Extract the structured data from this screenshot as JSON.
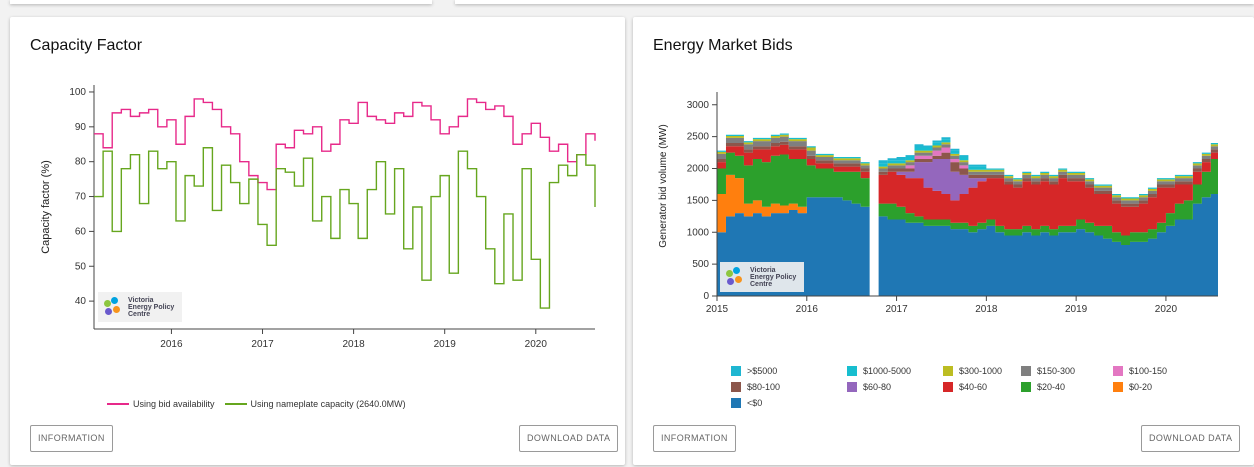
{
  "left_panel": {
    "title": "Capacity Factor",
    "info_button": "INFORMATION",
    "download_button": "DOWNLOAD DATA",
    "logo_text": "Victoria Energy Policy Centre",
    "chart_data": {
      "type": "line",
      "title": "Capacity Factor",
      "ylabel": "Capacity factor (%)",
      "xlabel": "",
      "xlim": [
        2015.15,
        2020.65
      ],
      "ylim": [
        32,
        102
      ],
      "x_ticks": [
        "2016",
        "2017",
        "2018",
        "2019",
        "2020"
      ],
      "y_ticks": [
        40,
        50,
        60,
        70,
        80,
        90,
        100
      ],
      "legend_position": "bottom",
      "series": [
        {
          "name": "Using bid availability",
          "color": "#e7298a",
          "x": [
            2015.15,
            2015.25,
            2015.35,
            2015.45,
            2015.55,
            2015.65,
            2015.75,
            2015.85,
            2015.95,
            2016.05,
            2016.15,
            2016.25,
            2016.35,
            2016.45,
            2016.55,
            2016.65,
            2016.75,
            2016.85,
            2016.95,
            2017.05,
            2017.15,
            2017.25,
            2017.35,
            2017.45,
            2017.55,
            2017.65,
            2017.75,
            2017.85,
            2017.95,
            2018.05,
            2018.15,
            2018.25,
            2018.35,
            2018.45,
            2018.55,
            2018.65,
            2018.75,
            2018.85,
            2018.95,
            2019.05,
            2019.15,
            2019.25,
            2019.35,
            2019.45,
            2019.55,
            2019.65,
            2019.75,
            2019.85,
            2019.95,
            2020.05,
            2020.15,
            2020.25,
            2020.35,
            2020.45,
            2020.55,
            2020.65
          ],
          "values": [
            88,
            84,
            94,
            95,
            93,
            94,
            95,
            90,
            92,
            85,
            93,
            98,
            97,
            95,
            90,
            88,
            80,
            76,
            74,
            72,
            85,
            84,
            89,
            88,
            90,
            83,
            85,
            92,
            91,
            97,
            93,
            92,
            91,
            94,
            93,
            97,
            96,
            92,
            88,
            90,
            93,
            98,
            97,
            95,
            96,
            93,
            85,
            88,
            91,
            87,
            83,
            85,
            80,
            82,
            88,
            86
          ]
        },
        {
          "name": "Using nameplate capacity (2640.0MW)",
          "color": "#66a61e",
          "x": [
            2015.15,
            2015.25,
            2015.35,
            2015.45,
            2015.55,
            2015.65,
            2015.75,
            2015.85,
            2015.95,
            2016.05,
            2016.15,
            2016.25,
            2016.35,
            2016.45,
            2016.55,
            2016.65,
            2016.75,
            2016.85,
            2016.95,
            2017.05,
            2017.15,
            2017.25,
            2017.35,
            2017.45,
            2017.55,
            2017.65,
            2017.75,
            2017.85,
            2017.95,
            2018.05,
            2018.15,
            2018.25,
            2018.35,
            2018.45,
            2018.55,
            2018.65,
            2018.75,
            2018.85,
            2018.95,
            2019.05,
            2019.15,
            2019.25,
            2019.35,
            2019.45,
            2019.55,
            2019.65,
            2019.75,
            2019.85,
            2019.95,
            2020.05,
            2020.15,
            2020.25,
            2020.35,
            2020.45,
            2020.55,
            2020.65
          ],
          "values": [
            70,
            83,
            60,
            78,
            82,
            68,
            83,
            78,
            80,
            63,
            76,
            73,
            84,
            66,
            79,
            74,
            68,
            75,
            62,
            56,
            78,
            77,
            73,
            81,
            63,
            70,
            58,
            72,
            68,
            58,
            72,
            80,
            65,
            78,
            55,
            67,
            46,
            70,
            76,
            48,
            83,
            78,
            70,
            55,
            45,
            65,
            46,
            78,
            52,
            38,
            74,
            79,
            76,
            82,
            79,
            67
          ]
        }
      ]
    }
  },
  "right_panel": {
    "title": "Energy Market Bids",
    "info_button": "INFORMATION",
    "download_button": "DOWNLOAD DATA",
    "logo_text": "Victoria Energy Policy Centre",
    "chart_data": {
      "type": "area",
      "title": "Energy Market Bids",
      "ylabel": "Generator bid volume (MW)",
      "xlabel": "",
      "xlim": [
        2015.0,
        2020.58
      ],
      "ylim": [
        0,
        3200
      ],
      "x_ticks": [
        "2015",
        "2016",
        "2017",
        "2018",
        "2019",
        "2020"
      ],
      "y_ticks": [
        0,
        500,
        1000,
        1500,
        2000,
        2500,
        3000
      ],
      "legend_position": "bottom",
      "x": [
        2015.0,
        2015.1,
        2015.2,
        2015.3,
        2015.4,
        2015.5,
        2015.6,
        2015.7,
        2015.8,
        2015.9,
        2016.0,
        2016.1,
        2016.2,
        2016.3,
        2016.4,
        2016.5,
        2016.6,
        2016.7,
        2016.8,
        2016.9,
        2017.0,
        2017.1,
        2017.2,
        2017.3,
        2017.4,
        2017.5,
        2017.6,
        2017.7,
        2017.8,
        2017.9,
        2018.0,
        2018.1,
        2018.2,
        2018.3,
        2018.4,
        2018.5,
        2018.6,
        2018.7,
        2018.8,
        2018.9,
        2019.0,
        2019.1,
        2019.2,
        2019.3,
        2019.4,
        2019.5,
        2019.6,
        2019.7,
        2019.8,
        2019.9,
        2020.0,
        2020.1,
        2020.2,
        2020.3,
        2020.4,
        2020.5,
        2020.58
      ],
      "series": [
        {
          "name": "<$0",
          "color": "#1f77b4",
          "values": [
            1000,
            1250,
            1300,
            1250,
            1300,
            1250,
            1300,
            1300,
            1350,
            1300,
            1550,
            1550,
            1550,
            1550,
            1500,
            1450,
            1400,
            0,
            1250,
            1200,
            1200,
            1150,
            1150,
            1100,
            1100,
            1100,
            1050,
            1050,
            1000,
            1050,
            1100,
            1000,
            950,
            950,
            1000,
            950,
            1000,
            950,
            1000,
            1000,
            1050,
            1000,
            950,
            900,
            850,
            800,
            850,
            850,
            900,
            1000,
            1100,
            1200,
            1200,
            1450,
            1550,
            1600,
            1600
          ]
        },
        {
          "name": "$0-20",
          "color": "#ff7f0e",
          "values": [
            600,
            650,
            550,
            200,
            200,
            150,
            150,
            120,
            100,
            100,
            0,
            0,
            0,
            0,
            0,
            0,
            0,
            0,
            0,
            0,
            0,
            0,
            0,
            0,
            0,
            0,
            0,
            0,
            0,
            0,
            0,
            0,
            0,
            0,
            0,
            0,
            0,
            0,
            0,
            0,
            0,
            0,
            0,
            0,
            0,
            0,
            0,
            0,
            0,
            0,
            0,
            0,
            0,
            0,
            0,
            0,
            0
          ]
        },
        {
          "name": "$20-40",
          "color": "#2ca02c",
          "values": [
            400,
            350,
            350,
            600,
            650,
            700,
            750,
            800,
            700,
            750,
            500,
            450,
            450,
            400,
            450,
            500,
            450,
            0,
            200,
            250,
            200,
            150,
            100,
            100,
            100,
            100,
            100,
            100,
            100,
            100,
            100,
            100,
            100,
            100,
            100,
            100,
            100,
            100,
            100,
            100,
            150,
            150,
            150,
            200,
            150,
            150,
            150,
            150,
            150,
            150,
            200,
            250,
            300,
            300,
            400,
            550,
            550
          ]
        },
        {
          "name": "$40-60",
          "color": "#d62728",
          "values": [
            100,
            100,
            150,
            200,
            150,
            200,
            150,
            150,
            150,
            150,
            100,
            80,
            80,
            80,
            80,
            80,
            100,
            0,
            450,
            500,
            500,
            550,
            600,
            500,
            450,
            400,
            350,
            450,
            600,
            650,
            650,
            750,
            700,
            650,
            700,
            700,
            700,
            700,
            750,
            700,
            600,
            550,
            500,
            500,
            450,
            450,
            400,
            450,
            500,
            550,
            400,
            300,
            250,
            200,
            150,
            100,
            100
          ]
        },
        {
          "name": "$60-80",
          "color": "#9467bd",
          "values": [
            0,
            0,
            0,
            0,
            0,
            0,
            0,
            0,
            0,
            0,
            0,
            0,
            0,
            0,
            0,
            0,
            0,
            0,
            0,
            0,
            50,
            100,
            250,
            400,
            500,
            550,
            450,
            300,
            150,
            50,
            0,
            0,
            0,
            0,
            0,
            0,
            0,
            0,
            0,
            0,
            0,
            0,
            0,
            0,
            0,
            0,
            0,
            0,
            0,
            0,
            0,
            0,
            0,
            0,
            0,
            0,
            0
          ]
        },
        {
          "name": "$80-100",
          "color": "#8c564b",
          "values": [
            50,
            50,
            50,
            50,
            50,
            50,
            50,
            50,
            50,
            50,
            50,
            50,
            50,
            50,
            50,
            50,
            50,
            0,
            50,
            50,
            50,
            50,
            50,
            50,
            50,
            100,
            150,
            100,
            50,
            50,
            50,
            50,
            50,
            50,
            50,
            50,
            50,
            50,
            50,
            50,
            50,
            50,
            50,
            50,
            50,
            50,
            50,
            50,
            50,
            50,
            50,
            50,
            50,
            50,
            50,
            50,
            50
          ]
        },
        {
          "name": "$100-150",
          "color": "#e377c2",
          "values": [
            0,
            0,
            0,
            0,
            0,
            0,
            0,
            0,
            0,
            0,
            0,
            0,
            0,
            0,
            0,
            0,
            0,
            0,
            0,
            0,
            0,
            50,
            50,
            50,
            80,
            80,
            50,
            50,
            0,
            0,
            0,
            0,
            0,
            0,
            0,
            0,
            0,
            0,
            0,
            0,
            0,
            0,
            0,
            0,
            0,
            0,
            0,
            0,
            0,
            0,
            0,
            0,
            0,
            0,
            0,
            0,
            0
          ]
        },
        {
          "name": "$150-300",
          "color": "#7f7f7f",
          "values": [
            80,
            80,
            80,
            80,
            80,
            80,
            80,
            80,
            80,
            80,
            80,
            50,
            50,
            50,
            50,
            50,
            50,
            0,
            50,
            50,
            50,
            50,
            50,
            50,
            50,
            50,
            50,
            50,
            50,
            50,
            50,
            50,
            50,
            50,
            50,
            50,
            50,
            50,
            50,
            50,
            50,
            50,
            50,
            50,
            50,
            50,
            50,
            50,
            50,
            50,
            50,
            50,
            50,
            50,
            50,
            50,
            50
          ]
        },
        {
          "name": "$300-1000",
          "color": "#bcbd22",
          "values": [
            30,
            30,
            30,
            30,
            30,
            30,
            30,
            30,
            30,
            30,
            50,
            30,
            30,
            30,
            30,
            30,
            30,
            0,
            30,
            30,
            30,
            30,
            30,
            30,
            30,
            30,
            30,
            30,
            30,
            30,
            30,
            30,
            30,
            30,
            30,
            30,
            30,
            30,
            30,
            30,
            30,
            30,
            30,
            30,
            30,
            30,
            30,
            30,
            30,
            30,
            30,
            30,
            30,
            30,
            30,
            30,
            30
          ]
        },
        {
          "name": "$1000-5000",
          "color": "#17becf",
          "values": [
            20,
            20,
            20,
            20,
            20,
            20,
            20,
            20,
            20,
            20,
            20,
            20,
            20,
            20,
            20,
            20,
            20,
            0,
            50,
            50,
            50,
            50,
            50,
            50,
            50,
            50,
            50,
            50,
            50,
            50,
            20,
            20,
            20,
            20,
            20,
            20,
            20,
            20,
            20,
            20,
            20,
            20,
            20,
            20,
            20,
            20,
            20,
            20,
            20,
            20,
            20,
            20,
            20,
            20,
            20,
            20,
            20
          ]
        },
        {
          "name": ">$5000",
          "color": "#1fb6d1",
          "values": [
            0,
            0,
            0,
            0,
            0,
            0,
            0,
            0,
            0,
            0,
            0,
            0,
            0,
            0,
            0,
            0,
            0,
            0,
            50,
            30,
            50,
            30,
            50,
            30,
            30,
            30,
            30,
            30,
            30,
            30,
            0,
            0,
            0,
            0,
            0,
            0,
            0,
            0,
            0,
            0,
            0,
            0,
            0,
            0,
            0,
            0,
            0,
            0,
            0,
            0,
            0,
            0,
            0,
            0,
            0,
            0,
            0
          ]
        }
      ]
    }
  }
}
